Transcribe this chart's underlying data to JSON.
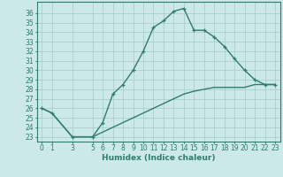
{
  "xlabel": "Humidex (Indice chaleur)",
  "bg_color": "#cce8e8",
  "line_color": "#2e7d6e",
  "grid_color": "#aacfcf",
  "line1_x": [
    0,
    1,
    3,
    5,
    6,
    7,
    8,
    9,
    10,
    11,
    12,
    13,
    14,
    15,
    16,
    17,
    18,
    19,
    20,
    21,
    22,
    23
  ],
  "line1_y": [
    26,
    25.5,
    23,
    23,
    24.5,
    27.5,
    28.5,
    30,
    32,
    34.5,
    35.2,
    36.2,
    36.5,
    34.2,
    34.2,
    33.5,
    32.5,
    31.2,
    30,
    29,
    28.5,
    28.5
  ],
  "line2_x": [
    0,
    1,
    3,
    5,
    6,
    7,
    8,
    9,
    10,
    11,
    12,
    13,
    14,
    15,
    16,
    17,
    18,
    19,
    20,
    21,
    22,
    23
  ],
  "line2_y": [
    26,
    25.5,
    23,
    23,
    23.5,
    24,
    24.5,
    25,
    25.5,
    26,
    26.5,
    27,
    27.5,
    27.8,
    28,
    28.2,
    28.2,
    28.2,
    28.2,
    28.5,
    28.5,
    28.5
  ],
  "ylim": [
    22.5,
    37.2
  ],
  "xlim": [
    -0.5,
    23.5
  ],
  "yticks": [
    23,
    24,
    25,
    26,
    27,
    28,
    29,
    30,
    31,
    32,
    33,
    34,
    35,
    36
  ],
  "xticks": [
    0,
    1,
    3,
    5,
    6,
    7,
    8,
    9,
    10,
    11,
    12,
    13,
    14,
    15,
    16,
    17,
    18,
    19,
    20,
    21,
    22,
    23
  ],
  "marker": "+",
  "marker_size": 3.5,
  "linewidth": 1.0,
  "font_size": 5.5,
  "xlabel_fontsize": 6.5
}
